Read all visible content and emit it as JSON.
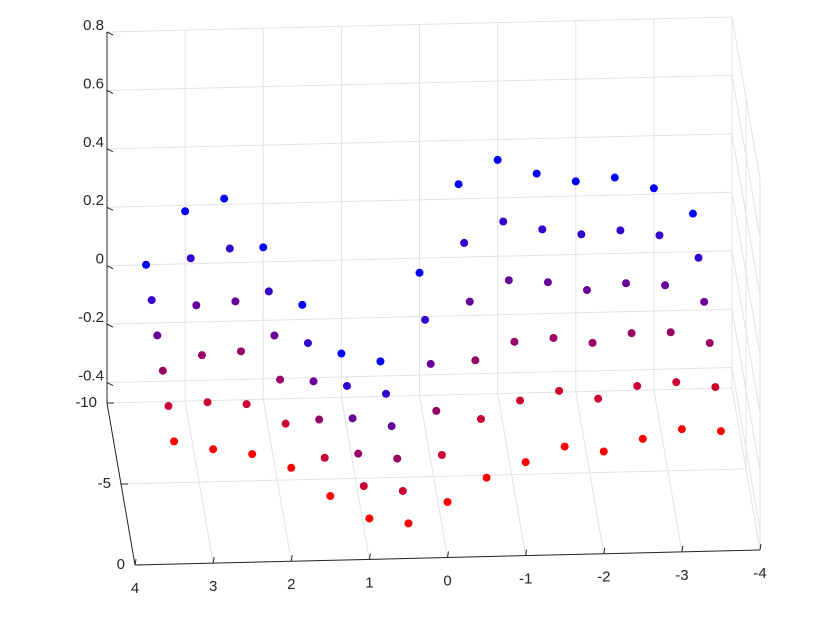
{
  "chart_data": {
    "type": "scatter3d",
    "x": [
      3.5,
      3,
      2.5,
      2,
      1.5,
      1,
      0.5,
      0,
      -0.5,
      -1,
      -1.5,
      -2,
      -2.5,
      -3,
      -3.5
    ],
    "rows": [
      {
        "y": -10,
        "z": [
          0.0,
          0.18,
          0.22,
          0.05,
          -0.15,
          -0.32,
          -0.35,
          -0.05,
          0.25,
          0.33,
          0.28,
          0.25,
          0.26,
          0.22,
          0.13
        ]
      },
      {
        "y": -8,
        "z": [
          -0.01,
          0.13,
          0.16,
          0.01,
          -0.17,
          -0.32,
          -0.35,
          -0.1,
          0.16,
          0.23,
          0.2,
          0.18,
          0.19,
          0.17,
          0.09
        ]
      },
      {
        "y": -6,
        "z": [
          -0.02,
          0.08,
          0.09,
          -0.03,
          -0.19,
          -0.32,
          -0.35,
          -0.14,
          0.07,
          0.14,
          0.13,
          0.1,
          0.12,
          0.11,
          0.05
        ]
      },
      {
        "y": -4,
        "z": [
          -0.03,
          0.02,
          0.03,
          -0.07,
          -0.21,
          -0.33,
          -0.35,
          -0.19,
          -0.02,
          0.04,
          0.05,
          0.03,
          0.06,
          0.06,
          0.02
        ]
      },
      {
        "y": -2,
        "z": [
          -0.04,
          -0.03,
          -0.04,
          -0.11,
          -0.23,
          -0.33,
          -0.35,
          -0.23,
          -0.11,
          -0.05,
          -0.02,
          -0.05,
          -0.01,
          0.0,
          -0.02
        ]
      },
      {
        "y": 0,
        "z": [
          -0.05,
          -0.08,
          -0.1,
          -0.15,
          -0.25,
          -0.33,
          -0.35,
          -0.28,
          -0.2,
          -0.15,
          -0.1,
          -0.12,
          -0.08,
          -0.05,
          -0.06
        ]
      }
    ],
    "colormap": [
      "#ff0000",
      "#0000ff"
    ],
    "xlim": [
      -4,
      4
    ],
    "ylim": [
      -10,
      0
    ],
    "zlim": [
      -0.47,
      0.8
    ],
    "xticks": [
      4,
      3,
      2,
      1,
      0,
      -1,
      -2,
      -3,
      -4
    ],
    "yticks": [
      0,
      -5,
      -10
    ],
    "zticks": [
      -0.4,
      -0.2,
      0,
      0.2,
      0.4,
      0.6,
      0.8
    ],
    "grid": true
  }
}
